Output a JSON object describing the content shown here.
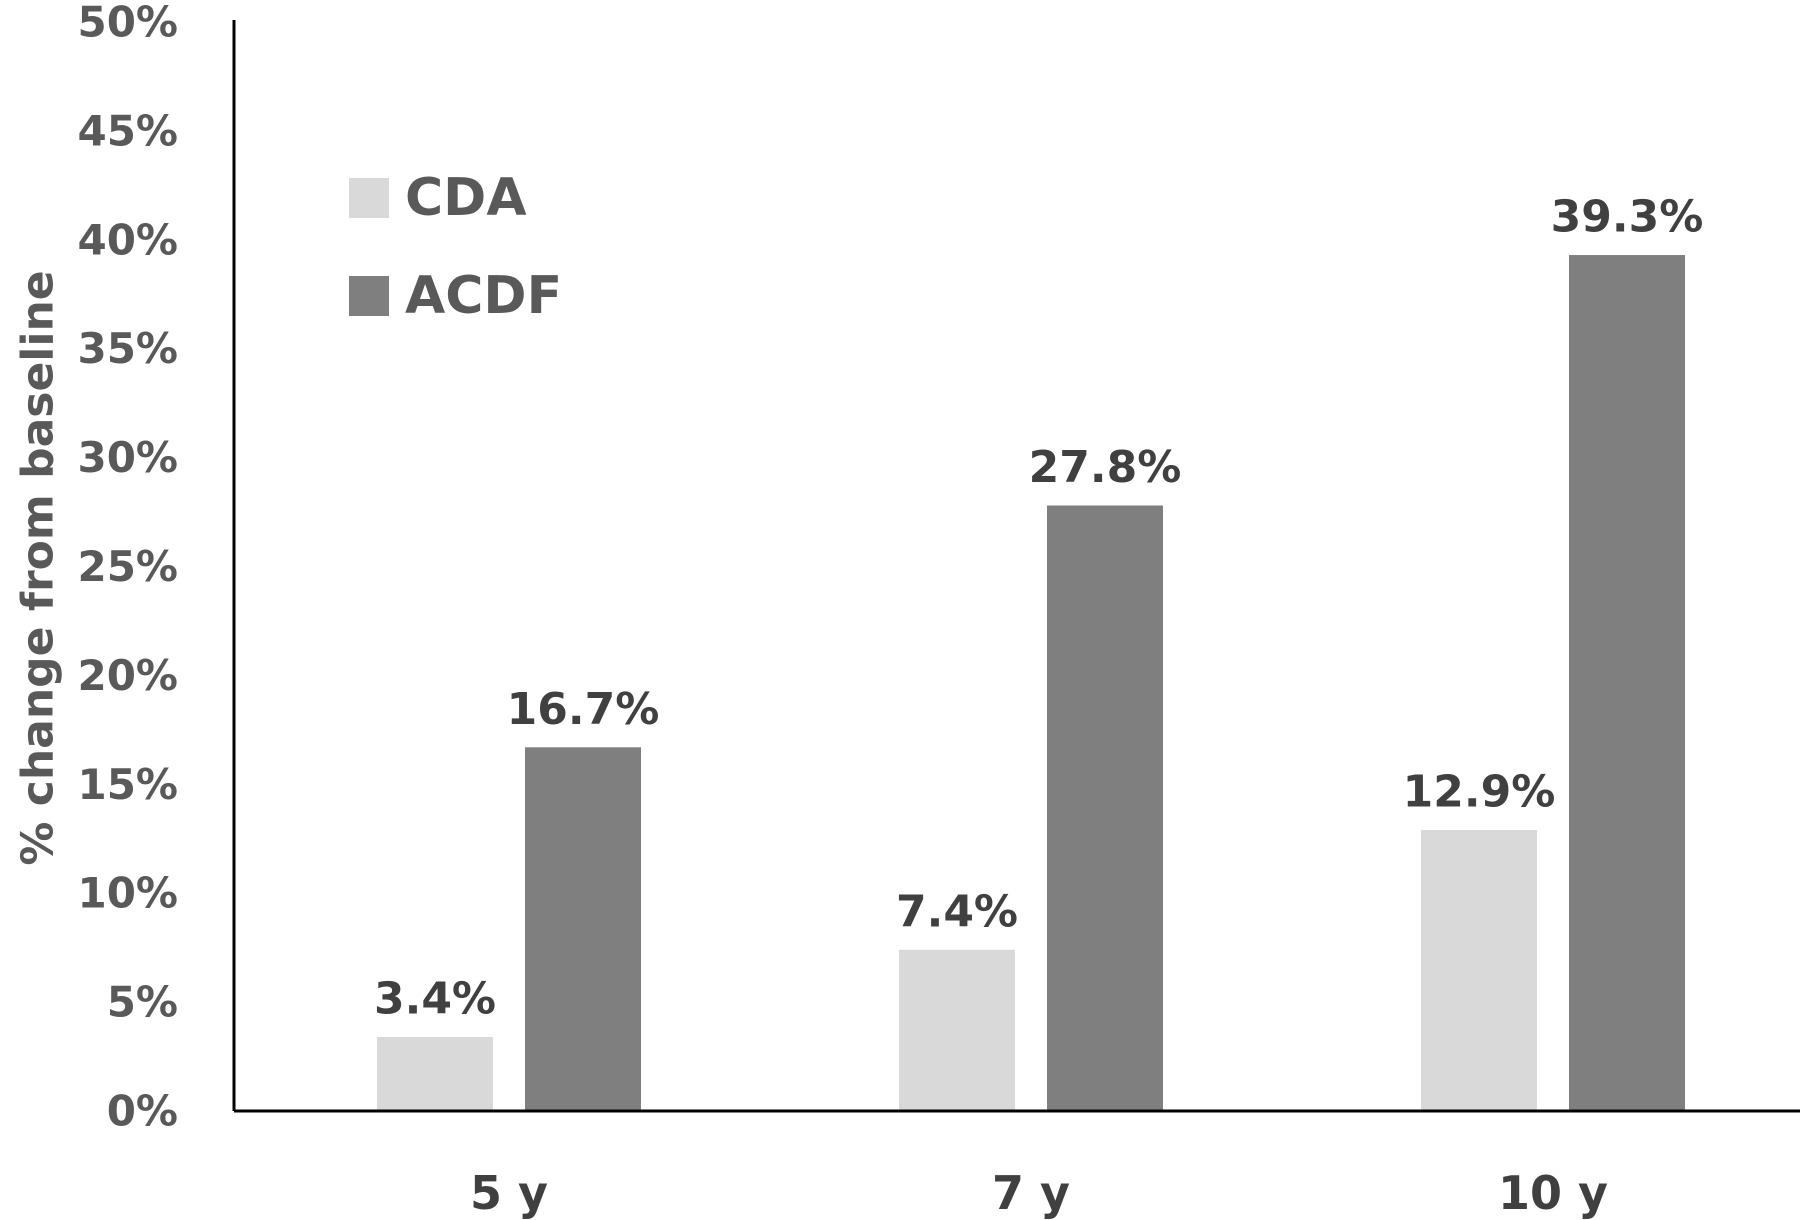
{
  "chart_data": {
    "type": "bar",
    "categories": [
      "5 y",
      "7 y",
      "10 y"
    ],
    "series": [
      {
        "name": "CDA",
        "values": [
          3.4,
          7.4,
          12.9
        ],
        "labels": [
          "3.4%",
          "7.4%",
          "12.9%"
        ],
        "color": "#d9d9d9"
      },
      {
        "name": "ACDF",
        "values": [
          16.7,
          27.8,
          39.3
        ],
        "labels": [
          "16.7%",
          "27.8%",
          "39.3%"
        ],
        "color": "#7f7f7f"
      }
    ],
    "ylabel": "% change from baseline",
    "xlabel": "",
    "ylim": [
      0,
      50
    ],
    "yticks": [
      0,
      5,
      10,
      15,
      20,
      25,
      30,
      35,
      40,
      45,
      50
    ],
    "ytick_labels": [
      "0%",
      "5%",
      "10%",
      "15%",
      "20%",
      "25%",
      "30%",
      "35%",
      "40%",
      "45%",
      "50%"
    ],
    "grid": false,
    "legend": "top-left"
  }
}
